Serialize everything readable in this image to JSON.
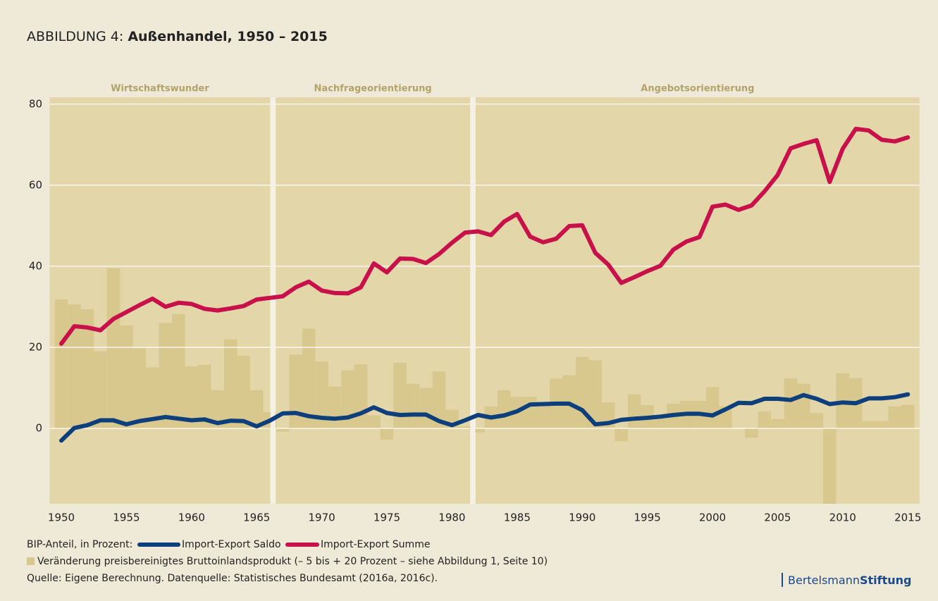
{
  "chart_data": {
    "type": "line",
    "title_prefix": "ABBILDUNG 4:",
    "title": "Außenhandel, 1950 – 2015",
    "x": [
      1950,
      1951,
      1952,
      1953,
      1954,
      1955,
      1956,
      1957,
      1958,
      1959,
      1960,
      1961,
      1962,
      1963,
      1964,
      1965,
      1966,
      1967,
      1968,
      1969,
      1970,
      1971,
      1972,
      1973,
      1974,
      1975,
      1976,
      1977,
      1978,
      1979,
      1980,
      1981,
      1982,
      1983,
      1984,
      1985,
      1986,
      1987,
      1988,
      1989,
      1990,
      1991,
      1992,
      1993,
      1994,
      1995,
      1996,
      1997,
      1998,
      1999,
      2000,
      2001,
      2002,
      2003,
      2004,
      2005,
      2006,
      2007,
      2008,
      2009,
      2010,
      2011,
      2012,
      2013,
      2014,
      2015
    ],
    "series": [
      {
        "name": "Import-Export Saldo",
        "color": "#0d3f7c",
        "values": [
          -3,
          0.1,
          0.8,
          2,
          2,
          1,
          1.8,
          2.3,
          2.8,
          2.4,
          2,
          2.2,
          1.3,
          1.9,
          1.8,
          0.5,
          1.9,
          3.7,
          3.8,
          3,
          2.6,
          2.4,
          2.7,
          3.7,
          5.2,
          3.8,
          3.3,
          3.4,
          3.4,
          1.8,
          0.8,
          2,
          3.3,
          2.7,
          3.2,
          4.2,
          5.9,
          6,
          6.1,
          6.1,
          4.5,
          1,
          1.3,
          2.1,
          2.4,
          2.6,
          2.9,
          3.3,
          3.6,
          3.6,
          3.2,
          4.7,
          6.3,
          6.2,
          7.3,
          7.3,
          7,
          8.2,
          7.3,
          6,
          6.4,
          6.2,
          7.4,
          7.4,
          7.7,
          8.4
        ]
      },
      {
        "name": "Import-Export Summe",
        "color": "#c8104a",
        "values": [
          20.9,
          25.2,
          24.9,
          24.2,
          27,
          28.7,
          30.4,
          32,
          30,
          31,
          30.7,
          29.5,
          29.1,
          29.6,
          30.2,
          31.8,
          32.2,
          32.6,
          34.8,
          36.2,
          34,
          33.4,
          33.3,
          34.8,
          40.7,
          38.5,
          41.9,
          41.8,
          40.8,
          43,
          45.8,
          48.3,
          48.6,
          47.7,
          51,
          52.9,
          47.3,
          45.9,
          46.8,
          49.9,
          50.1,
          43.3,
          40.4,
          35.9,
          37.3,
          38.8,
          40.1,
          44.1,
          46.1,
          47.2,
          54.7,
          55.2,
          53.9,
          55,
          58.5,
          62.5,
          69.1,
          70.2,
          71.1,
          60.8,
          69,
          73.9,
          73.5,
          71.2,
          70.8,
          71.8
        ]
      }
    ],
    "bars": {
      "name": "Veränderung preisbereinigtes Bruttoinlandsprodukt (– 5 bis + 20 Prozent – siehe Abbildung 1, Seite 10)",
      "color": "#d8c88d",
      "values": [
        31.8,
        30.6,
        29.4,
        19,
        39.5,
        25.4,
        19.8,
        15,
        26,
        28.2,
        15.3,
        15.7,
        9.4,
        22,
        17.9,
        9.4,
        4,
        -0.8,
        18.2,
        24.6,
        16.5,
        10.3,
        14.3,
        15.8,
        3.2,
        -2.8,
        16.2,
        11,
        10,
        14,
        4.6,
        0.5,
        -1,
        5.4,
        9.4,
        7.8,
        7.8,
        5.7,
        12.3,
        13.1,
        17.6,
        16.8,
        6.4,
        -3.2,
        8.4,
        5.7,
        3.2,
        6.1,
        6.8,
        6.8,
        10.2,
        5.5,
        0,
        -2.3,
        4.2,
        2.3,
        12.3,
        11,
        3.8,
        -18.6,
        13.6,
        12.4,
        1.8,
        1.8,
        5.4,
        5.8
      ]
    },
    "periods": [
      {
        "label": "Wirtschaftswunder",
        "start": 1949.1,
        "end": 1966.25
      },
      {
        "label": "Nachfrageorientierung",
        "start": 1966.25,
        "end": 1981.6
      },
      {
        "label": "Angebotsorientierung",
        "start": 1981.6,
        "end": 2015.9
      }
    ],
    "xlim": [
      1949.1,
      2015.9
    ],
    "xticks": [
      1950,
      1955,
      1960,
      1965,
      1970,
      1975,
      1980,
      1985,
      1990,
      1995,
      2000,
      2005,
      2010,
      2015
    ],
    "ylim": [
      -18.6,
      81.7
    ],
    "yticks": [
      0,
      20,
      40,
      60,
      80
    ],
    "grid": true,
    "legend_label": "BIP-Anteil, in Prozent:",
    "source": "Quelle: Eigene Berechnung. Datenquelle: Statistisches Bundesamt (2016a, 2016c).",
    "logo": {
      "first": "Bertelsmann",
      "second": "Stiftung"
    }
  }
}
